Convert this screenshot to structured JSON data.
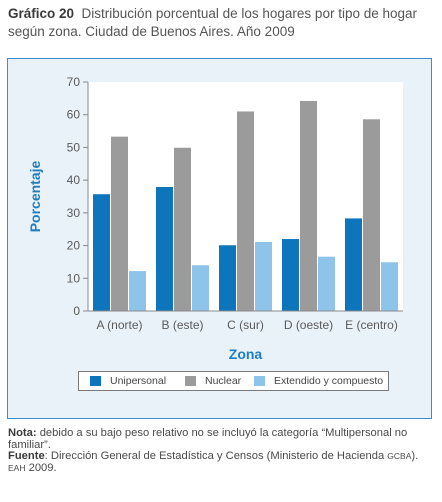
{
  "title": {
    "number": "Gráfico 20",
    "text": "Distribución porcentual de los hogares por tipo de hogar según zona. Ciudad de Buenos Aires. Año 2009"
  },
  "chart_data": {
    "type": "bar",
    "title": "",
    "xlabel": "Zona",
    "ylabel": "Porcentaje",
    "ylim": [
      0,
      70
    ],
    "yticks": [
      0,
      10,
      20,
      30,
      40,
      50,
      60,
      70
    ],
    "grid": false,
    "legend_position": "bottom",
    "categories": [
      "A (norte)",
      "B (este)",
      "C (sur)",
      "D (oeste)",
      "E (centro)"
    ],
    "series": [
      {
        "name": "Unipersonal",
        "color": "#0d75bc",
        "values": [
          35.7,
          37.9,
          20.1,
          22.0,
          28.3
        ]
      },
      {
        "name": "Nuclear",
        "color": "#9b9b9b",
        "values": [
          53.3,
          49.9,
          61.0,
          64.2,
          58.6
        ]
      },
      {
        "name": "Extendido y compuesto",
        "color": "#8fc4ea",
        "values": [
          12.2,
          14.0,
          21.1,
          16.6,
          14.9
        ]
      }
    ]
  },
  "notes": {
    "nota_label": "Nota:",
    "nota_text": "debido a su bajo peso relativo no se incluyó la categoría “Multipersonal no familiar”.",
    "fuente_label": "Fuente",
    "fuente_text": ": Dirección General de Estadística y Censos (Ministerio de Hacienda",
    "gcba": "GCBA",
    "eah": "EAH",
    "year": "2009."
  }
}
